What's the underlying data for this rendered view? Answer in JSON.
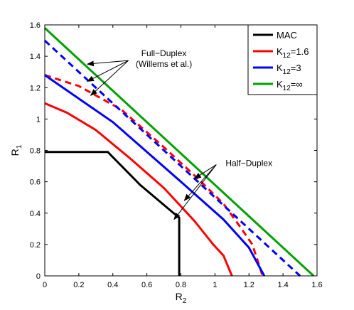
{
  "chart_data": {
    "type": "line",
    "xlabel": "R",
    "xlabel_sub": "2",
    "ylabel": "R",
    "ylabel_sub": "1",
    "xlim": [
      0,
      1.6
    ],
    "ylim": [
      0,
      1.6
    ],
    "xticks": [
      0,
      0.2,
      0.4,
      0.6,
      0.8,
      1,
      1.2,
      1.4,
      1.6
    ],
    "yticks": [
      0,
      0.2,
      0.4,
      0.6,
      0.8,
      1,
      1.2,
      1.4,
      1.6
    ],
    "xtick_labels": [
      "0",
      "0.2",
      "0.4",
      "0.6",
      "0.8",
      "1",
      "1.2",
      "1.4",
      "1.6"
    ],
    "ytick_labels": [
      "0",
      "0.2",
      "0.4",
      "0.6",
      "0.8",
      "1",
      "1.2",
      "1.4",
      "1.6"
    ],
    "grid": false,
    "legend_position": "top-right",
    "legend": [
      {
        "label": "MAC",
        "color": "#000000"
      },
      {
        "label": "K12=1.6",
        "color": "#ff0000"
      },
      {
        "label": "K12=3",
        "color": "#0000ff"
      },
      {
        "label": "K12=∞",
        "color": "#00a000"
      }
    ],
    "series": [
      {
        "label_ref": 0,
        "color": "#000000",
        "dash": false,
        "x": [
          0,
          0.37,
          0.56,
          0.79,
          0.79
        ],
        "y": [
          0.79,
          0.79,
          0.58,
          0.37,
          0
        ]
      },
      {
        "label_ref": 1,
        "color": "#ff0000",
        "dash": false,
        "x": [
          0,
          0.13,
          0.3,
          0.5,
          0.7,
          0.88,
          0.99,
          1.05,
          1.1
        ],
        "y": [
          1.1,
          1.04,
          0.93,
          0.75,
          0.56,
          0.35,
          0.2,
          0.13,
          0
        ]
      },
      {
        "label_ref": 1,
        "color": "#ff0000",
        "dash": true,
        "x": [
          0,
          0.2,
          0.45,
          0.7,
          0.9,
          1.05,
          1.15,
          1.22,
          1.28
        ],
        "y": [
          1.28,
          1.21,
          1.06,
          0.82,
          0.62,
          0.46,
          0.31,
          0.2,
          0
        ]
      },
      {
        "label_ref": 2,
        "color": "#0000ff",
        "dash": false,
        "x": [
          0,
          0.4,
          0.8,
          1.05,
          1.2,
          1.29
        ],
        "y": [
          1.28,
          0.98,
          0.6,
          0.36,
          0.18,
          0
        ]
      },
      {
        "label_ref": 2,
        "color": "#0000ff",
        "dash": true,
        "x": [
          0,
          1.5
        ],
        "y": [
          1.5,
          0
        ]
      },
      {
        "label_ref": 3,
        "color": "#00a000",
        "dash": false,
        "x": [
          0,
          1.58
        ],
        "y": [
          1.58,
          0
        ]
      }
    ],
    "annotations": [
      {
        "lines": [
          "Full−Duplex",
          "(Willems et al.)"
        ],
        "anchor": [
          0.7,
          1.4
        ],
        "arrows_to": [
          [
            0.25,
            1.35
          ],
          [
            0.25,
            1.24
          ],
          [
            0.27,
            1.15
          ]
        ]
      },
      {
        "lines": [
          "Half−Duplex"
        ],
        "anchor": [
          1.2,
          0.7
        ],
        "arrows_to": [
          [
            0.88,
            0.62
          ],
          [
            0.82,
            0.48
          ],
          [
            0.76,
            0.36
          ]
        ]
      }
    ]
  }
}
